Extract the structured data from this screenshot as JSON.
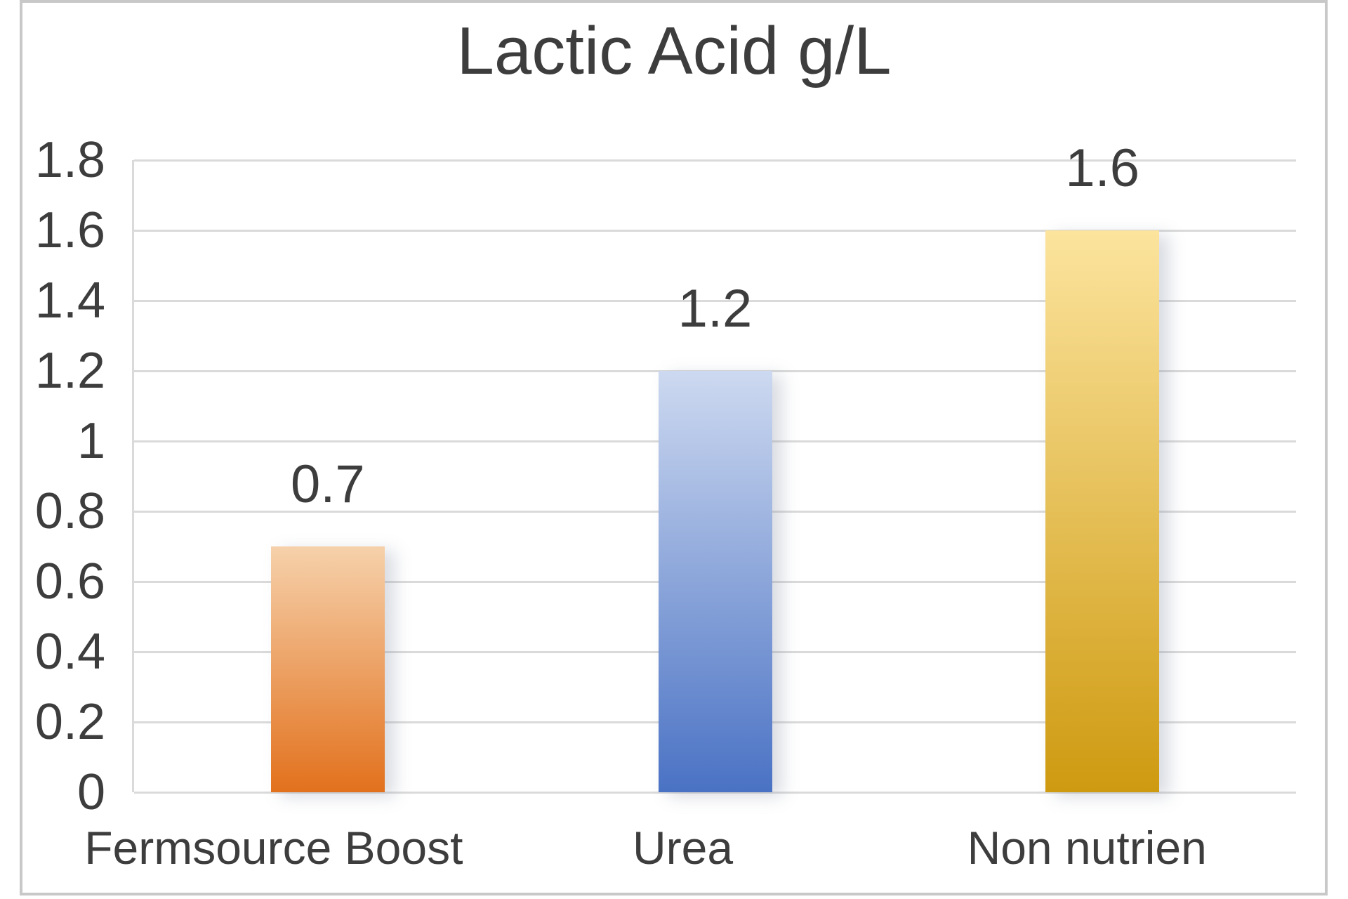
{
  "chart_data": {
    "type": "bar",
    "title": "Lactic Acid g/L",
    "categories": [
      "Fermsource Boost",
      "Urea",
      "Non nutrien"
    ],
    "values": [
      0.7,
      1.2,
      1.6
    ],
    "data_labels": [
      "0.7",
      "1.2",
      "1.6"
    ],
    "ylim": [
      0,
      1.8
    ],
    "y_tick_step": 0.2,
    "y_ticks": [
      "1.8",
      "1.6",
      "1.4",
      "1.2",
      "1",
      "0.8",
      "0.6",
      "0.4",
      "0.2",
      "0"
    ],
    "xlabel": "",
    "ylabel": "",
    "grid": "horizontal",
    "legend": "none",
    "bar_colors": [
      {
        "series": "Fermsource Boost",
        "top": "#F6D1AB",
        "bottom": "#E2711D"
      },
      {
        "series": "Urea",
        "top": "#CDD9F0",
        "bottom": "#4A72C4"
      },
      {
        "series": "Non nutrien",
        "top": "#FCE49E",
        "bottom": "#CE9A10"
      }
    ]
  },
  "style": {
    "frame_border_color": "#C8C8C8",
    "gridline_color": "#DADADA",
    "text_color": "#3D3D3D",
    "background": "#FFFFFF"
  }
}
